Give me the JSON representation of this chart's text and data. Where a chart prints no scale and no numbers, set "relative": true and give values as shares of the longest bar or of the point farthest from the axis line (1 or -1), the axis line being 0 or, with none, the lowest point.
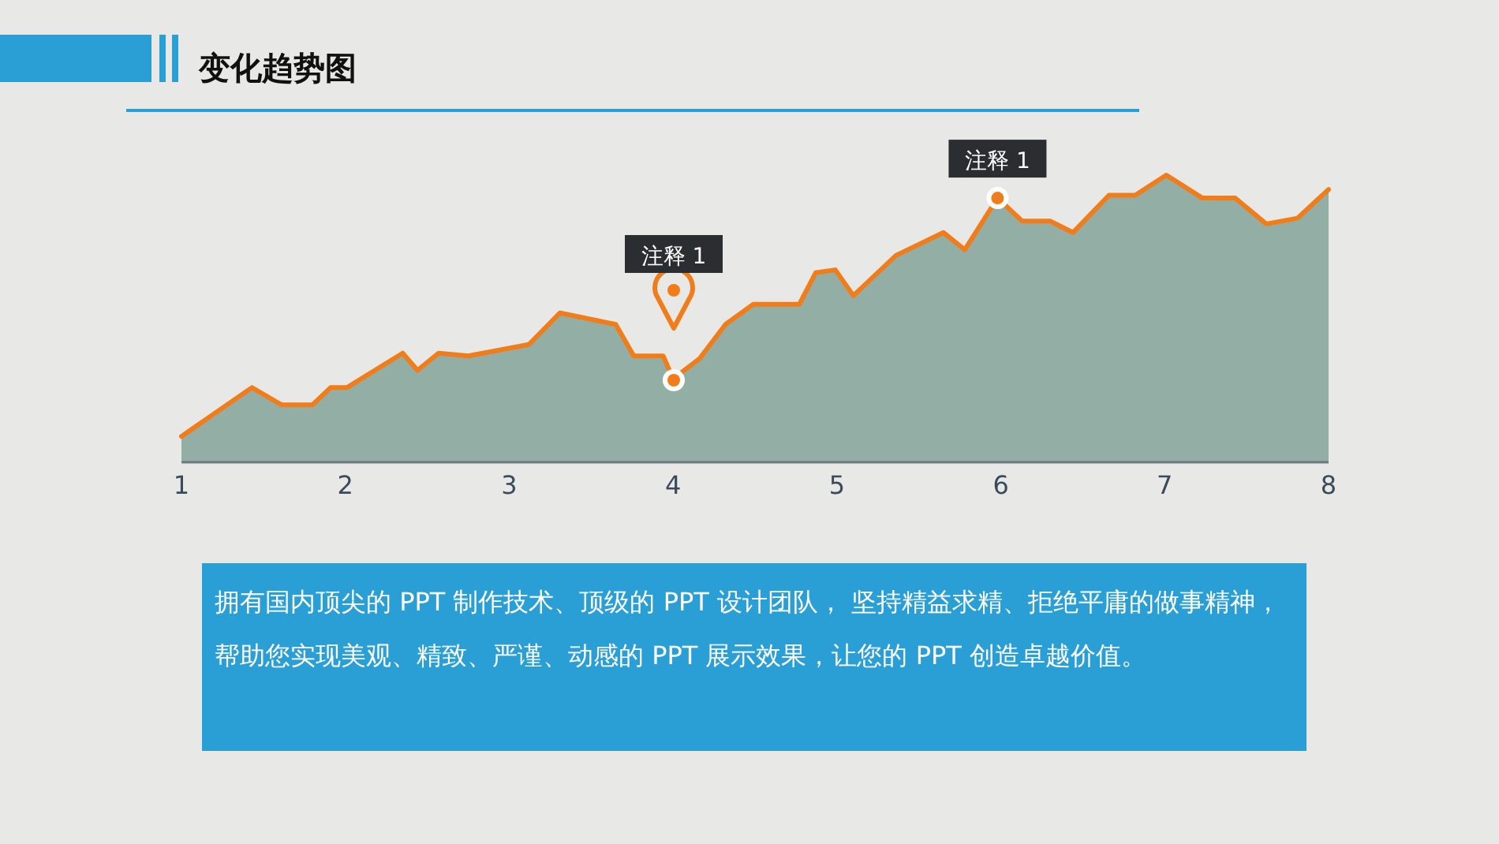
{
  "chart_data": {
    "type": "area",
    "title": "变化趋势图",
    "relative": true,
    "xlim": [
      1,
      8
    ],
    "xticks": [
      1,
      2,
      3,
      4,
      5,
      6,
      7,
      8
    ],
    "series": [
      {
        "color": "#93afa5",
        "x": [
          1.0,
          1.43,
          1.61,
          1.8,
          1.91,
          2.01,
          2.35,
          2.44,
          2.57,
          2.75,
          3.12,
          3.31,
          3.65,
          3.76,
          3.94,
          4.0,
          4.16,
          4.32,
          4.49,
          4.77,
          4.87,
          4.99,
          5.1,
          5.36,
          5.65,
          5.78,
          5.98,
          6.13,
          6.3,
          6.44,
          6.66,
          6.82,
          7.01,
          7.23,
          7.43,
          7.62,
          7.81,
          8.0
        ],
        "values": [
          0.09,
          0.26,
          0.2,
          0.2,
          0.26,
          0.26,
          0.38,
          0.32,
          0.38,
          0.37,
          0.41,
          0.52,
          0.48,
          0.37,
          0.37,
          0.29,
          0.36,
          0.48,
          0.55,
          0.55,
          0.66,
          0.67,
          0.58,
          0.72,
          0.8,
          0.74,
          0.92,
          0.84,
          0.84,
          0.8,
          0.93,
          0.93,
          1.0,
          0.92,
          0.92,
          0.83,
          0.85,
          0.95
        ]
      }
    ],
    "annotations": [
      "注释 1",
      {
        "text": "注释 1",
        "x": 5.98,
        "y": 0.92
      },
      "拥有国内顶尖的 PPT 制作技术、顶级的 PPT 设计团队， 坚持精益求精、拒绝平庸的做事精神，帮助您实现美观、精致、严谨、动感的 PPT 展示效果，让您的 PPT 创造卓越价值。"
    ]
  }
}
